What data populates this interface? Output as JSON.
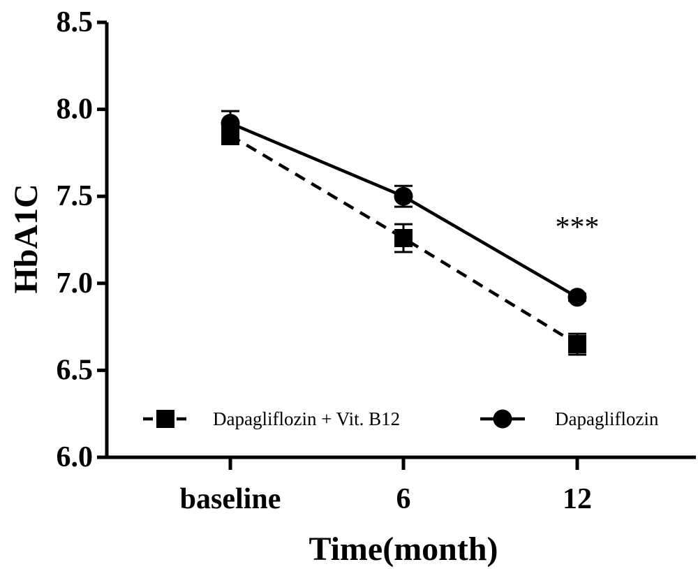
{
  "chart_data": {
    "type": "line",
    "title": "",
    "xlabel": "Time(month)",
    "ylabel": "HbA1C",
    "categories": [
      "baseline",
      "6",
      "12"
    ],
    "ylim": [
      6.0,
      8.5
    ],
    "yticks": [
      "6.0",
      "6.5",
      "7.0",
      "7.5",
      "8.0",
      "8.5"
    ],
    "grid": false,
    "legend_position": "bottom, inside plot",
    "series": [
      {
        "name": "Dapagliflozin + Vit. B12",
        "marker": "square",
        "line_style": "dashed",
        "color": "#000000",
        "values": [
          7.85,
          7.26,
          6.65
        ],
        "errors": [
          0.05,
          0.08,
          0.06
        ]
      },
      {
        "name": "Dapagliflozin",
        "marker": "circle",
        "line_style": "solid",
        "color": "#000000",
        "values": [
          7.92,
          7.5,
          6.92
        ],
        "errors": [
          0.07,
          0.06,
          0.02
        ]
      }
    ],
    "annotations": [
      {
        "text": "***",
        "category": "12",
        "y": 7.32
      }
    ]
  }
}
